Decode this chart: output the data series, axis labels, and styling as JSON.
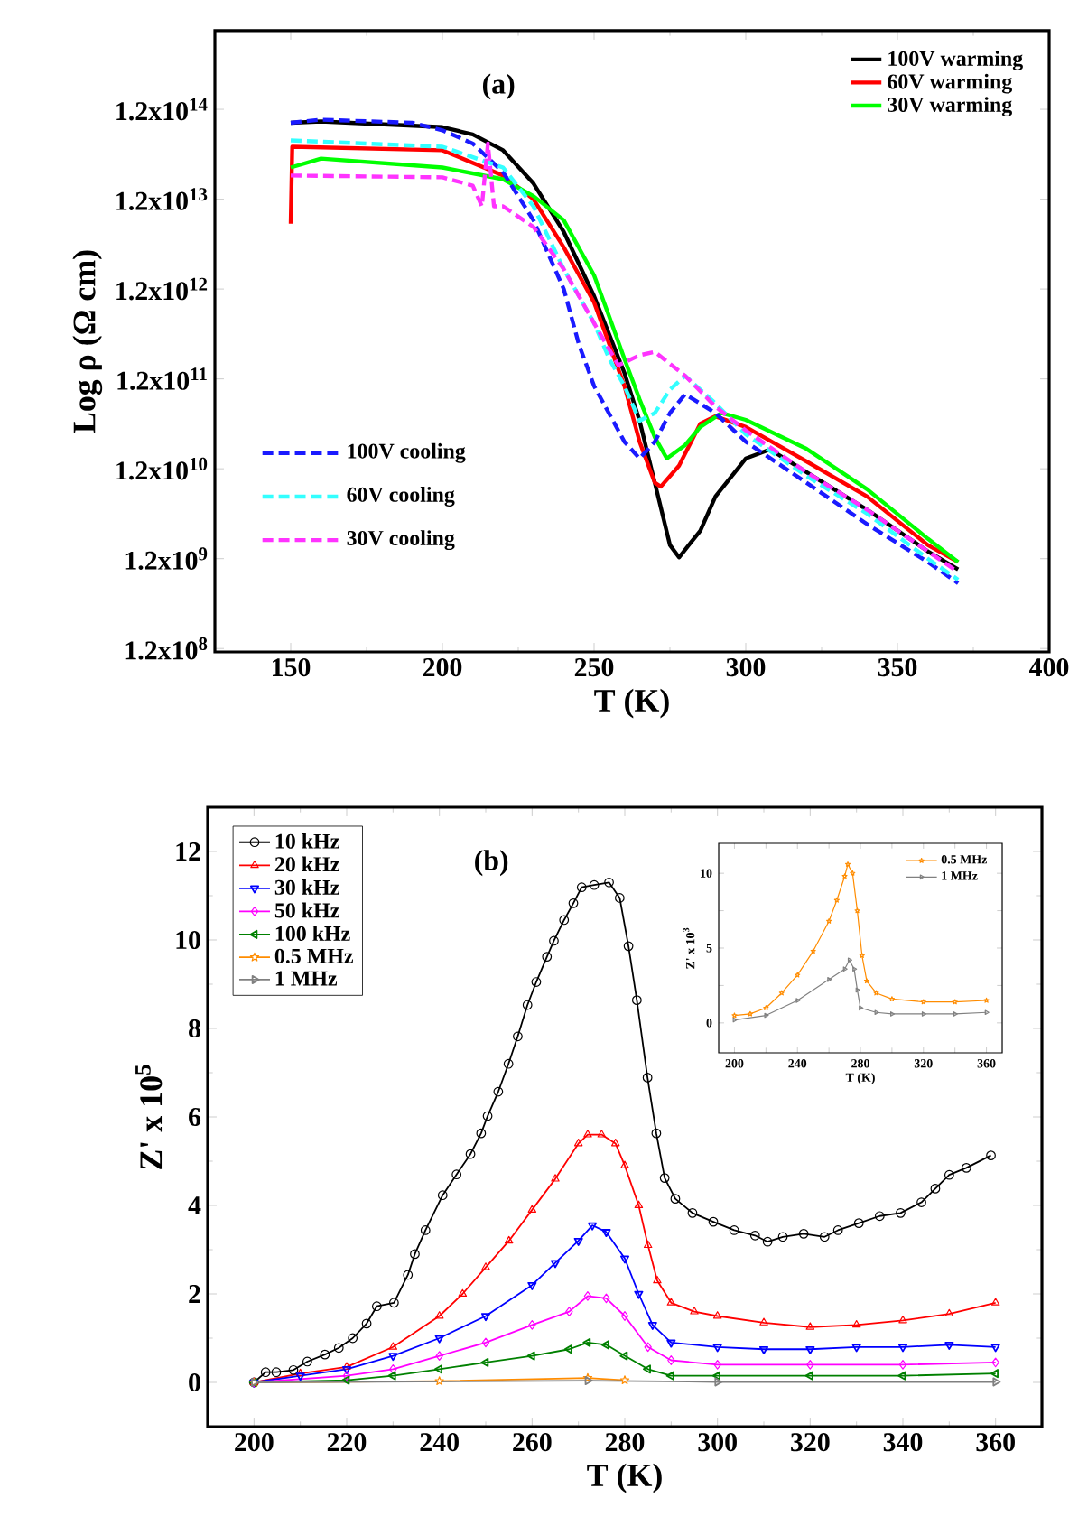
{
  "chart_data": [
    {
      "type": "line",
      "title": "(a)",
      "xlabel": "T (K)",
      "ylabel": "Log ρ (Ω cm)",
      "log": "y",
      "legend": "top right",
      "xlim": [
        125,
        400
      ],
      "xticks": [
        150,
        200,
        250,
        300,
        350,
        400
      ],
      "ylim": [
        110000000.0,
        900000000000000.0
      ],
      "yticks": [
        {
          "value": 120000000.0,
          "label": "1.2x10$^{8}$"
        },
        {
          "value": 1200000000.0,
          "label": "1.2x10$^{9}$"
        },
        {
          "value": 12000000000.0,
          "label": "1.2x10$^{10}$"
        },
        {
          "value": 120000000000.0,
          "label": "1.2x10$^{11}$"
        },
        {
          "value": 1200000000000.0,
          "label": "1.2x10$^{12}$"
        },
        {
          "value": 12000000000000.0,
          "label": "1.2x10$^{13}$"
        },
        {
          "value": 120000000000000.0,
          "label": "1.2x10$^{14}$"
        }
      ],
      "series": [
        {
          "name": "100V warming",
          "color": "#000000",
          "line_style": "solid",
          "x": [
            150,
            160,
            200,
            210,
            220,
            230,
            240,
            250,
            260,
            265,
            270,
            275,
            278,
            285,
            290,
            300,
            308,
            320,
            340,
            360,
            370
          ],
          "values": [
            85000000000000.0,
            88000000000000.0,
            76000000000000.0,
            63000000000000.0,
            42000000000000.0,
            18000000000000.0,
            5200000000000.0,
            1000000000000.0,
            140000000000.0,
            41000000000.0,
            8400000000.0,
            1700000000.0,
            1240000000.0,
            2450000000.0,
            5900000000.0,
            15600000000.0,
            19700000000.0,
            11000000000.0,
            4200000000.0,
            1450000000.0,
            910000000.0
          ]
        },
        {
          "name": "60V warming",
          "color": "#ff0000",
          "line_style": "solid",
          "x": [
            150,
            150.5,
            200,
            220,
            230,
            240,
            250,
            260,
            265,
            270,
            272,
            278,
            285,
            290,
            300,
            320,
            340,
            360,
            370
          ],
          "values": [
            6400000000000.0,
            46000000000000.0,
            42000000000000.0,
            22000000000000.0,
            12000000000000.0,
            3500000000000.0,
            850000000000.0,
            100000000000.0,
            24000000000.0,
            8400000000.0,
            7600000000.0,
            13000000000.0,
            38000000000.0,
            46000000000.0,
            35000000000.0,
            14500000000.0,
            5900000000.0,
            1700000000.0,
            1100000000.0
          ]
        },
        {
          "name": "30V warming",
          "color": "#00ff00",
          "line_style": "solid",
          "x": [
            150,
            160,
            200,
            220,
            230,
            240,
            250,
            255,
            260,
            265,
            270,
            274,
            280,
            285,
            292,
            300,
            320,
            340,
            360,
            370
          ],
          "values": [
            27000000000000.0,
            34000000000000.0,
            27000000000000.0,
            20000000000000.0,
            13000000000000.0,
            7000000000000.0,
            1700000000000.0,
            590000000000.0,
            200000000000.0,
            71000000000.0,
            27000000000.0,
            15600000000.0,
            22000000000.0,
            35000000000.0,
            50000000000.0,
            42000000000.0,
            20000000000.0,
            7100000000.0,
            2000000000.0,
            1100000000.0
          ]
        },
        {
          "name": "100V cooling",
          "color": "#1a1aff",
          "line_style": "dashed",
          "x": [
            150,
            160,
            190,
            200,
            210,
            220,
            230,
            240,
            245,
            250,
            260,
            265,
            270,
            275,
            280,
            290,
            300,
            320,
            340,
            360,
            370
          ],
          "values": [
            85000000000000.0,
            92000000000000.0,
            85000000000000.0,
            70000000000000.0,
            50000000000000.0,
            24000000000000.0,
            7000000000000.0,
            1200000000000.0,
            290000000000.0,
            100000000000.0,
            24000000000.0,
            15600000000.0,
            24000000000.0,
            50000000000.0,
            81000000000.0,
            50000000000.0,
            24000000000.0,
            8400000000.0,
            2900000000.0,
            1100000000.0,
            640000000.0
          ]
        },
        {
          "name": "60V cooling",
          "color": "#33ffff",
          "line_style": "dashed",
          "x": [
            150,
            200,
            220,
            230,
            240,
            250,
            255,
            260,
            265,
            270,
            275,
            280,
            290,
            300,
            320,
            340,
            360,
            370
          ],
          "values": [
            54000000000000.0,
            46000000000000.0,
            27000000000000.0,
            10000000000000.0,
            2000000000000.0,
            500000000000.0,
            200000000000.0,
            100000000000.0,
            41000000000.0,
            50000000000.0,
            91000000000.0,
            130000000000.0,
            64000000000.0,
            29000000000.0,
            10000000000.0,
            3800000000.0,
            1200000000.0,
            700000000.0
          ]
        },
        {
          "name": "30V cooling",
          "color": "#ff33ff",
          "line_style": "dashed",
          "x": [
            150,
            200,
            210,
            213,
            215,
            217,
            220,
            230,
            240,
            250,
            258,
            265,
            270,
            280,
            290,
            300,
            320,
            340,
            360,
            370
          ],
          "values": [
            22000000000000.0,
            21000000000000.0,
            17000000000000.0,
            10000000000000.0,
            50000000000000.0,
            10000000000000.0,
            10000000000000.0,
            5900000000000.0,
            2000000000000.0,
            500000000000.0,
            170000000000.0,
            220000000000.0,
            240000000000.0,
            130000000000.0,
            59000000000.0,
            32000000000.0,
            11000000000.0,
            4200000000.0,
            1450000000.0,
            850000000.0
          ]
        }
      ]
    },
    {
      "type": "line",
      "title": "(b)",
      "xlabel": "T (K)",
      "ylabel": "Z' x 10$^{5}$",
      "legend": "top left",
      "xlim": [
        190,
        370
      ],
      "xticks": [
        200,
        220,
        240,
        260,
        280,
        300,
        320,
        340,
        360
      ],
      "ylim": [
        -1,
        13
      ],
      "yticks": [
        0,
        2,
        4,
        6,
        8,
        10,
        12
      ],
      "series": [
        {
          "name": "10 kHz",
          "color": "#000000",
          "marker": "circle",
          "x": [
            200,
            202.5,
            204.8,
            208.5,
            211.5,
            215.3,
            218.3,
            221.3,
            224.3,
            226.5,
            230.2,
            233.2,
            234.7,
            237,
            240.7,
            243.7,
            246.7,
            249,
            250.4,
            252.7,
            254.9,
            256.9,
            259,
            260.9,
            263.2,
            264.7,
            266.9,
            268.9,
            270.7,
            273.4,
            276.6,
            278.9,
            280.8,
            282.6,
            284.9,
            286.8,
            288.6,
            290.9,
            294.6,
            299.1,
            303.6,
            308.1,
            310.8,
            314.1,
            318.6,
            323.1,
            326,
            330.5,
            335,
            339.5,
            344,
            347,
            350,
            353.7,
            359
          ],
          "values": [
            0,
            0.23,
            0.23,
            0.28,
            0.47,
            0.63,
            0.78,
            1.0,
            1.33,
            1.72,
            1.8,
            2.43,
            2.9,
            3.44,
            4.23,
            4.7,
            5.16,
            5.63,
            6.02,
            6.57,
            7.2,
            7.82,
            8.53,
            9.05,
            9.62,
            9.98,
            10.45,
            10.83,
            11.19,
            11.24,
            11.3,
            10.95,
            9.86,
            8.64,
            6.89,
            5.63,
            4.62,
            4.15,
            3.83,
            3.63,
            3.44,
            3.32,
            3.18,
            3.29,
            3.36,
            3.29,
            3.44,
            3.6,
            3.76,
            3.83,
            4.07,
            4.38,
            4.69,
            4.85,
            5.13
          ]
        },
        {
          "name": "20 kHz",
          "color": "#ff0000",
          "marker": "triangle",
          "x": [
            200,
            210,
            220,
            230,
            240,
            245,
            250,
            255,
            260,
            265,
            270,
            272,
            275,
            278,
            280,
            283,
            285,
            287,
            290,
            295,
            300,
            310,
            320,
            330,
            340,
            350,
            360
          ],
          "values": [
            0,
            0.2,
            0.35,
            0.8,
            1.5,
            2.0,
            2.6,
            3.2,
            3.9,
            4.6,
            5.4,
            5.6,
            5.6,
            5.4,
            4.9,
            4.0,
            3.1,
            2.3,
            1.8,
            1.6,
            1.5,
            1.35,
            1.25,
            1.3,
            1.4,
            1.55,
            1.8
          ]
        },
        {
          "name": "30 kHz",
          "color": "#0000ff",
          "marker": "triangle down",
          "x": [
            200,
            210,
            220,
            230,
            240,
            250,
            260,
            265,
            270,
            273,
            276,
            280,
            283,
            286,
            290,
            300,
            310,
            320,
            330,
            340,
            350,
            360
          ],
          "values": [
            0,
            0.15,
            0.3,
            0.6,
            1.0,
            1.5,
            2.2,
            2.7,
            3.2,
            3.55,
            3.4,
            2.8,
            2.0,
            1.3,
            0.9,
            0.8,
            0.75,
            0.75,
            0.8,
            0.8,
            0.85,
            0.8
          ]
        },
        {
          "name": "50 kHz",
          "color": "#ff00ff",
          "marker": "diamond",
          "x": [
            200,
            220,
            230,
            240,
            250,
            260,
            268,
            272,
            276,
            280,
            285,
            290,
            300,
            320,
            340,
            360
          ],
          "values": [
            0,
            0.15,
            0.3,
            0.6,
            0.9,
            1.3,
            1.6,
            1.95,
            1.9,
            1.5,
            0.8,
            0.5,
            0.4,
            0.4,
            0.4,
            0.45
          ]
        },
        {
          "name": "100 kHz",
          "color": "#008000",
          "marker": "triangle left",
          "x": [
            200,
            220,
            230,
            240,
            250,
            260,
            268,
            272,
            276,
            280,
            285,
            290,
            300,
            320,
            340,
            360
          ],
          "values": [
            0,
            0.05,
            0.15,
            0.3,
            0.45,
            0.6,
            0.75,
            0.9,
            0.85,
            0.6,
            0.3,
            0.15,
            0.15,
            0.15,
            0.15,
            0.2
          ]
        },
        {
          "name": "0.5 MHz",
          "color": "#ff8c00",
          "marker": "star",
          "x": [
            200,
            240,
            272,
            280
          ],
          "values": [
            0,
            0.03,
            0.1,
            0.05
          ]
        },
        {
          "name": "1 MHz",
          "color": "#808080",
          "marker": "triangle right",
          "x": [
            200,
            272,
            300,
            360
          ],
          "values": [
            0,
            0.04,
            0.01,
            0.01
          ]
        }
      ]
    },
    {
      "type": "line",
      "xlabel": "T (K)",
      "ylabel": "Z' x 10$^{3}$",
      "legend": "top right",
      "xlim": [
        190,
        370
      ],
      "xticks": [
        200,
        240,
        280,
        320,
        360
      ],
      "ylim": [
        -2,
        12
      ],
      "yticks": [
        0,
        5,
        10
      ],
      "series": [
        {
          "name": "0.5 MHz",
          "color": "#ff8c00",
          "marker": "star",
          "x": [
            200,
            210,
            220,
            230,
            240,
            250,
            260,
            265,
            270,
            272,
            275,
            278,
            281,
            284,
            290,
            300,
            320,
            340,
            360
          ],
          "values": [
            0.5,
            0.6,
            1.0,
            2.0,
            3.2,
            4.8,
            6.8,
            8.2,
            9.8,
            10.6,
            10.0,
            7.5,
            4.5,
            2.8,
            2.0,
            1.6,
            1.4,
            1.4,
            1.5
          ]
        },
        {
          "name": "1 MHz",
          "color": "#808080",
          "marker": "triangle right",
          "x": [
            200,
            220,
            240,
            260,
            270,
            273,
            276,
            278,
            280,
            290,
            300,
            320,
            340,
            360
          ],
          "values": [
            0.2,
            0.5,
            1.5,
            2.9,
            3.6,
            4.2,
            3.6,
            2.2,
            1.0,
            0.7,
            0.6,
            0.6,
            0.6,
            0.7
          ]
        }
      ]
    }
  ]
}
